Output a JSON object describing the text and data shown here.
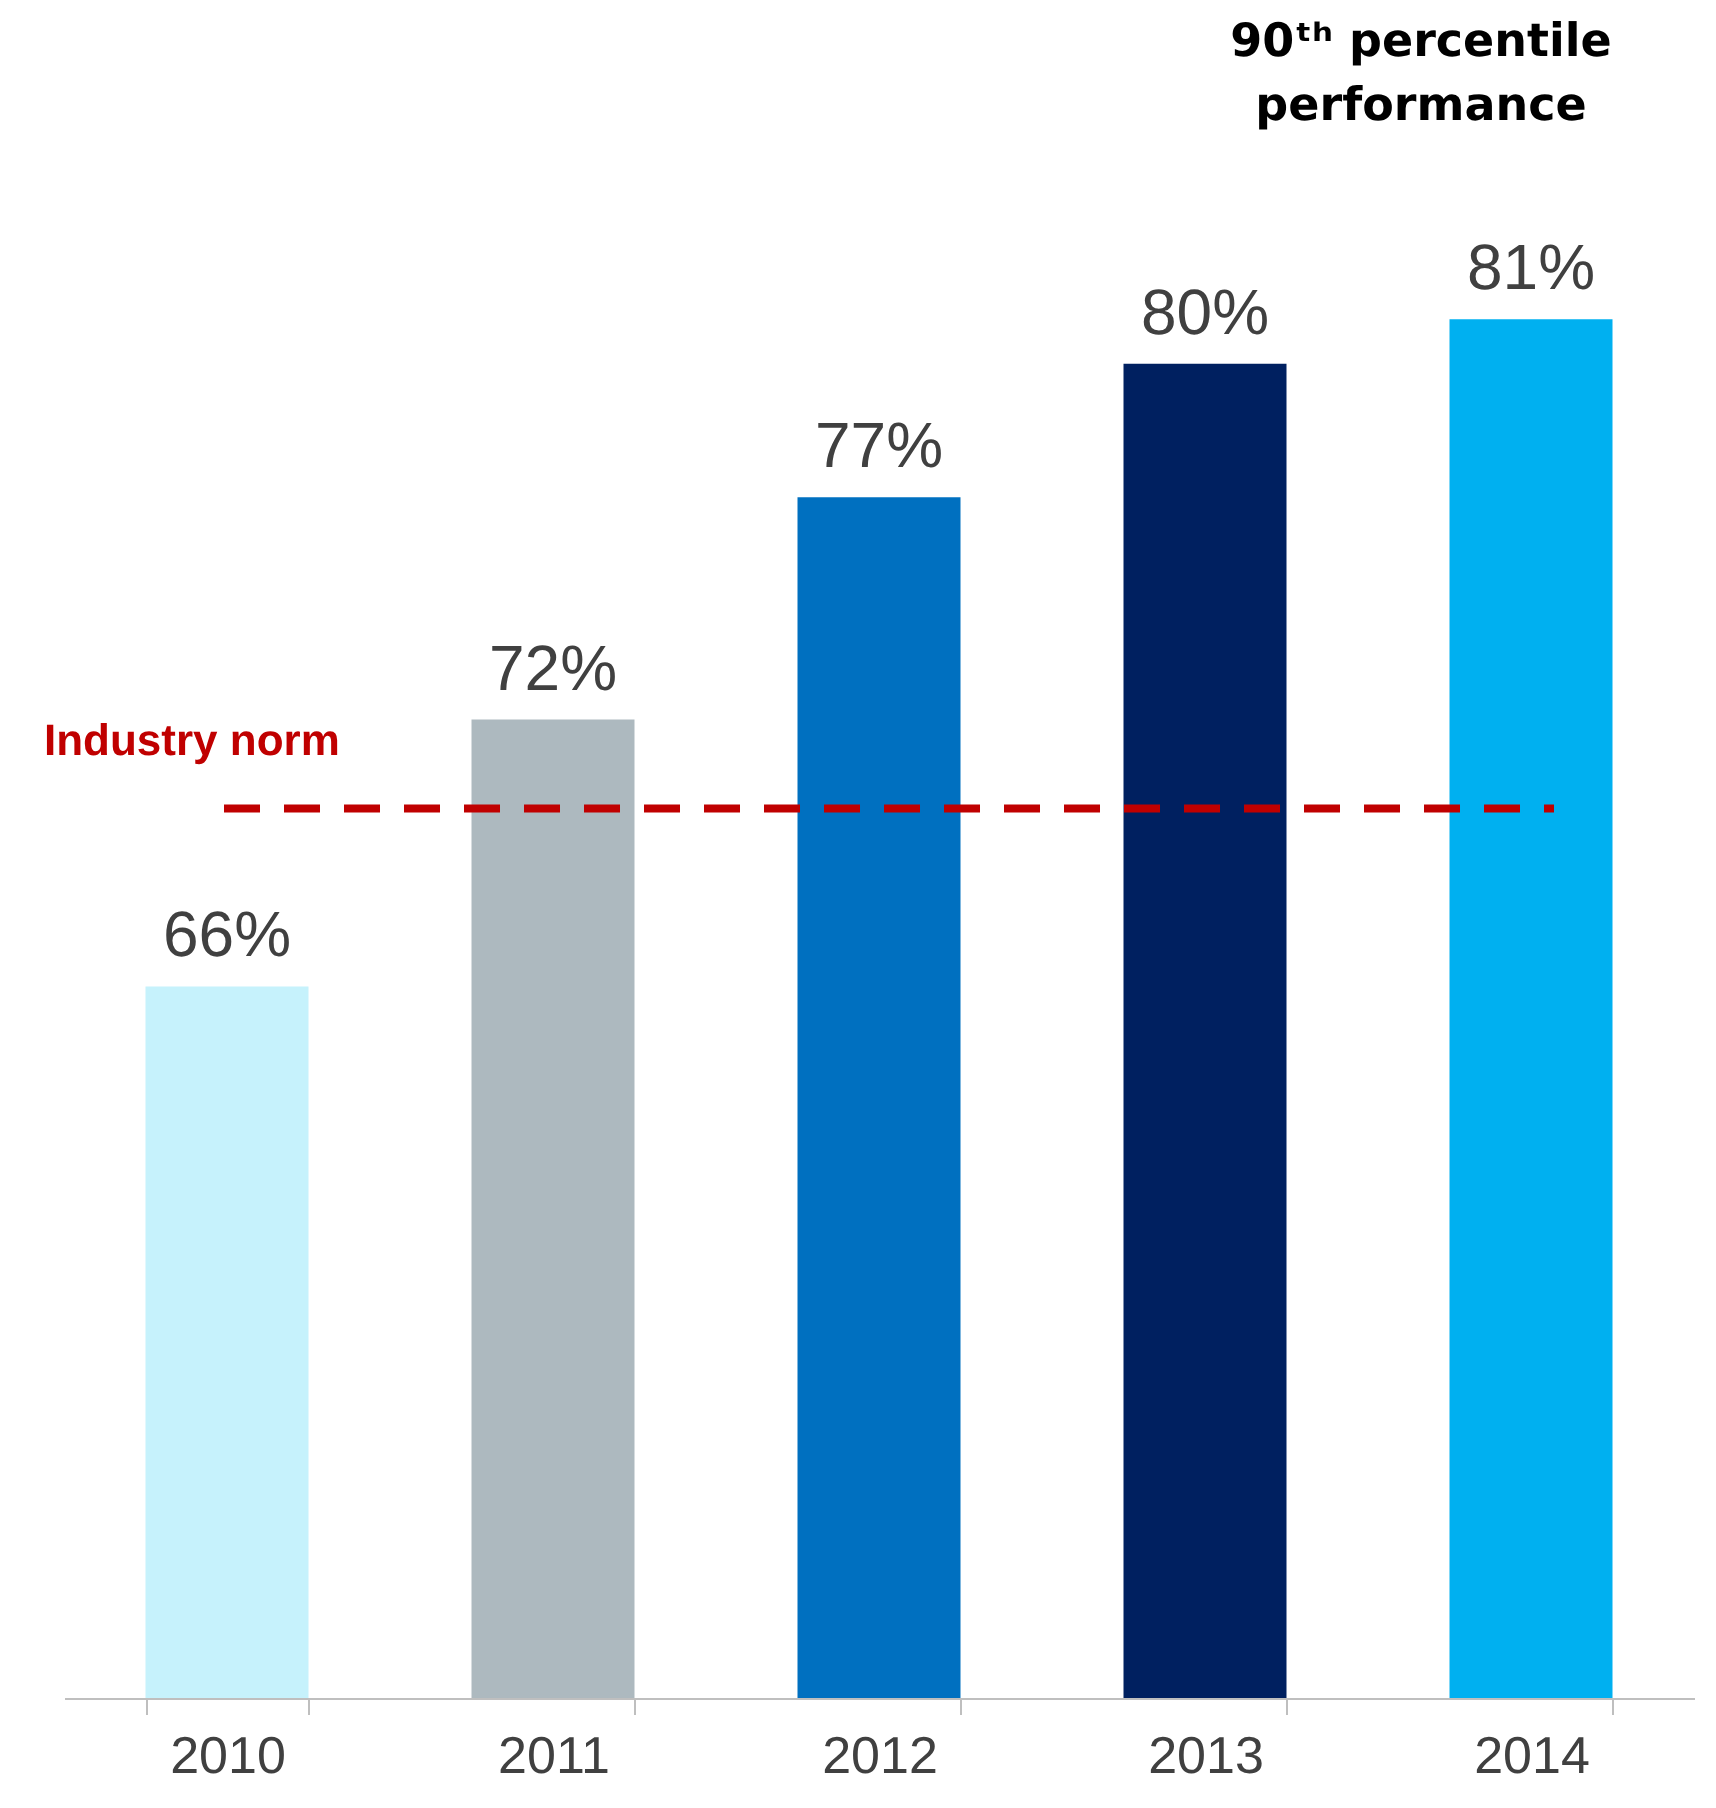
{
  "chart_data": {
    "type": "bar",
    "categories": [
      "2010",
      "2011",
      "2012",
      "2013",
      "2014"
    ],
    "values": [
      66,
      72,
      77,
      80,
      81
    ],
    "value_labels": [
      "66%",
      "72%",
      "77%",
      "80%",
      "81%"
    ],
    "colors": [
      "#c6f2fc",
      "#adb9bf",
      "#0070c0",
      "#002060",
      "#00b0f0"
    ],
    "ylim": [
      50,
      88
    ],
    "grid": false,
    "legend": false,
    "annotations": [
      "90ᵗʰ percentile performance"
    ],
    "ref_lines": [
      {
        "axis": "y",
        "value": 70,
        "label": "Industry norm",
        "color": "#c00000",
        "line_style": "dashed"
      }
    ]
  }
}
